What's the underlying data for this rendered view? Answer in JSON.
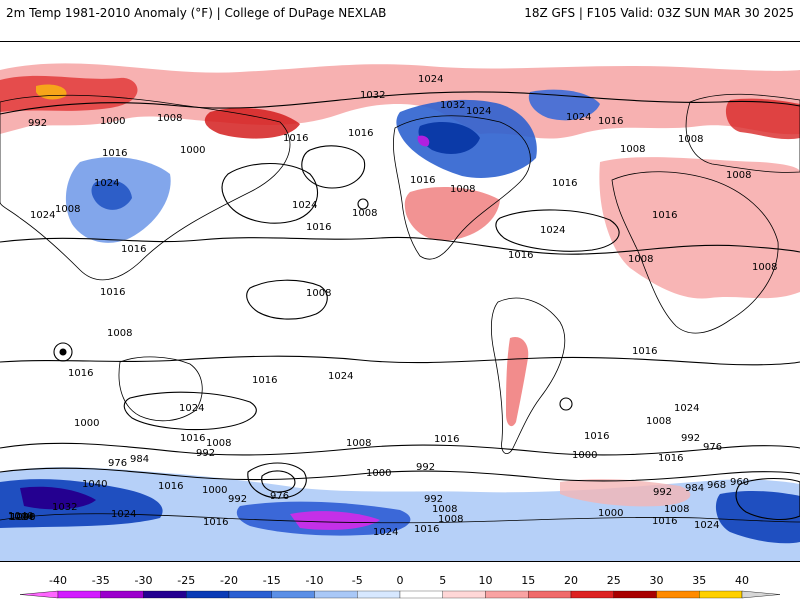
{
  "header": {
    "left_title": "2m Temp 1981-2010 Anomaly (°F) | College of DuPage NEXLAB",
    "right_title": "18Z GFS | F105 Valid: 03Z SUN MAR 30 2025"
  },
  "map": {
    "projection": "global cylindrical",
    "field": "2m temperature anomaly",
    "contours": "mean sea level pressure isobars",
    "isobar_labels": [
      "992",
      "1000",
      "1024",
      "1032",
      "1008",
      "1016",
      "1000",
      "1016",
      "1024",
      "1008",
      "1024",
      "1016",
      "1016",
      "1024",
      "1008",
      "1016",
      "1032",
      "1024",
      "1008",
      "1024",
      "1016",
      "1008",
      "1016",
      "1008",
      "1024",
      "1016",
      "1008",
      "1008",
      "1016",
      "1008",
      "1016",
      "1008",
      "1008",
      "1016",
      "1016",
      "1024",
      "1016",
      "1024",
      "1000",
      "1016",
      "1008",
      "992",
      "1008",
      "1016",
      "992",
      "976",
      "984",
      "1016",
      "1000",
      "992",
      "976",
      "1000",
      "992",
      "1008",
      "1016",
      "1016",
      "1008",
      "992",
      "1000",
      "1016",
      "1024",
      "1024",
      "1024",
      "1016",
      "1008",
      "992",
      "976",
      "984",
      "968",
      "960",
      "1008",
      "1000",
      "1016",
      "1024",
      "1048",
      "1040",
      "1032",
      "1040",
      "1024",
      "1016",
      "1000",
      "1016"
    ]
  },
  "colorbar": {
    "ticks": [
      "-40",
      "-35",
      "-30",
      "-25",
      "-20",
      "-15",
      "-10",
      "-5",
      "0",
      "5",
      "10",
      "15",
      "20",
      "25",
      "30",
      "35",
      "40"
    ],
    "colors": [
      "#ff66ff",
      "#d21cff",
      "#9b00cc",
      "#240090",
      "#0a3bb6",
      "#2a5fd2",
      "#5b8fe6",
      "#a9c8f7",
      "#d7e8ff",
      "#ffffff",
      "#ffd7d7",
      "#f9a3a3",
      "#f06a6a",
      "#dd2222",
      "#a80000",
      "#ff8a00",
      "#ffd000"
    ],
    "legend_end_color": "#d6d6d6"
  }
}
